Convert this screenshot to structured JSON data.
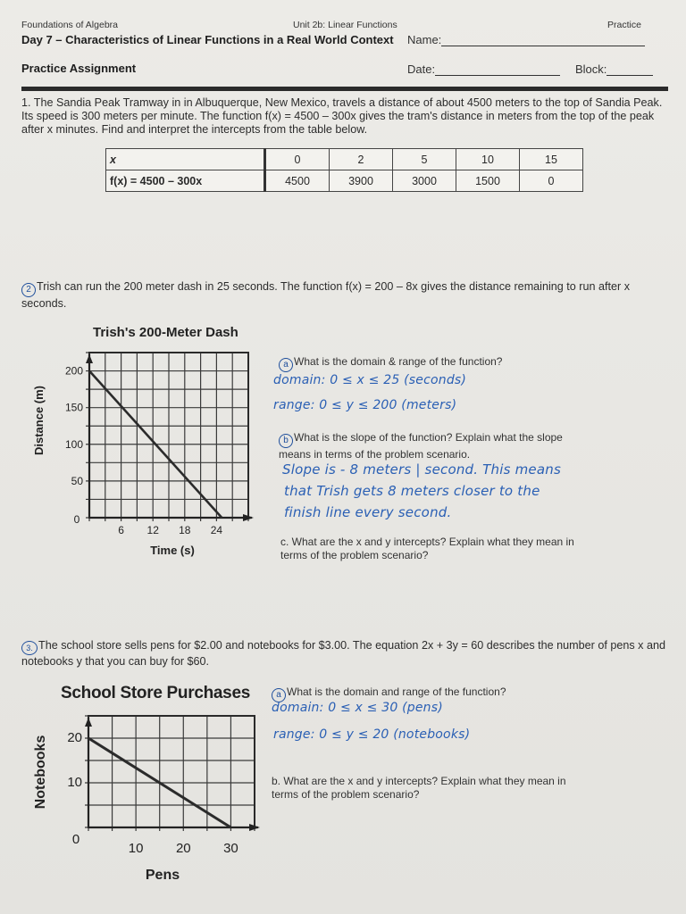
{
  "header": {
    "course": "Foundations of Algebra",
    "unit": "Unit 2b: Linear Functions",
    "type": "Practice",
    "title": "Day 7 – Characteristics of Linear Functions in a Real World Context",
    "name_label": "Name:",
    "assignment": "Practice Assignment",
    "date_label": "Date:",
    "block_label": "Block:"
  },
  "problem1": {
    "text": "1. The Sandia Peak Tramway in in Albuquerque, New Mexico, travels a distance of about 4500 meters to the top of Sandia Peak.  Its speed is 300 meters per minute.  The function f(x) = 4500 – 300x gives the tram's distance in meters from the top of the peak after x minutes.  Find and interpret the intercepts from the table below.",
    "table": {
      "row_x_label": "x",
      "row_fx_label": "f(x) = 4500 – 300x",
      "x": [
        "0",
        "2",
        "5",
        "10",
        "15"
      ],
      "fx": [
        "4500",
        "3900",
        "3000",
        "1500",
        "0"
      ]
    }
  },
  "problem2": {
    "number": "2",
    "text": "Trish can run the 200 meter dash in 25 seconds.  The function f(x) = 200 – 8x gives the distance remaining to run after x seconds.",
    "qa": {
      "letter": "a",
      "question": "What is the domain & range of the function?",
      "answer_domain": "domain:  0 ≤ x ≤ 25  (seconds)",
      "answer_range": "range:  0 ≤ y ≤ 200  (meters)"
    },
    "qb": {
      "letter": "b",
      "question_line1": "What is the slope of the function?  Explain what the slope",
      "question_line2": "means in terms of the problem scenario.",
      "answer_line1": "Slope is - 8 meters | second. This means",
      "answer_line2": "that Trish gets 8 meters closer to the",
      "answer_line3": "finish line every second."
    },
    "qc": {
      "question_line1": "c. What are the x and y intercepts?  Explain what they mean in",
      "question_line2": "terms of the problem scenario?"
    }
  },
  "problem3": {
    "number": "3.",
    "text": "The school store sells pens for $2.00 and notebooks for $3.00.  The equation 2x + 3y = 60 describes the number of pens x and notebooks y that you can buy for $60.",
    "qa": {
      "letter": "a",
      "question": "What is the domain and range of the function?",
      "answer_domain": "domain:  0 ≤ x ≤ 30  (pens)",
      "answer_range": "range: 0 ≤ y ≤ 20  (notebooks)"
    },
    "qb": {
      "question_line1": "b. What are the x and y intercepts?  Explain what they mean in",
      "question_line2": "terms of the problem scenario?"
    }
  },
  "colors": {
    "ink": "#2a2a2a",
    "handwriting": "#2a5fb4",
    "grid": "#3a3a3a",
    "paper": "#eae9e5"
  },
  "chart_data": [
    {
      "type": "line",
      "title": "Trish's 200-Meter Dash",
      "xlabel": "Time (s)",
      "ylabel": "Distance (m)",
      "x_ticks": [
        "6",
        "12",
        "18",
        "24"
      ],
      "y_ticks": [
        "50",
        "100",
        "150",
        "200"
      ],
      "origin_label": "0",
      "xlim": [
        0,
        30
      ],
      "ylim": [
        0,
        225
      ],
      "grid": true,
      "x": [
        0,
        25
      ],
      "values": [
        200,
        0
      ]
    },
    {
      "type": "line",
      "title": "School Store Purchases",
      "xlabel": "Pens",
      "ylabel": "Notebooks",
      "x_ticks": [
        "10",
        "20",
        "30"
      ],
      "y_ticks": [
        "10",
        "20"
      ],
      "origin_label": "0",
      "xlim": [
        0,
        35
      ],
      "ylim": [
        0,
        25
      ],
      "grid": true,
      "x": [
        0,
        30
      ],
      "values": [
        20,
        0
      ]
    }
  ]
}
